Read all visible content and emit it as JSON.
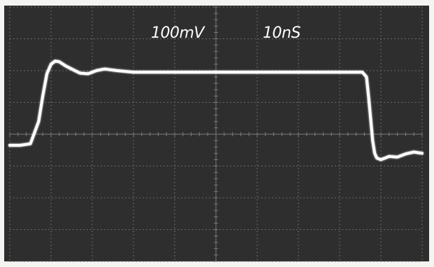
{
  "chart_data": {
    "type": "line",
    "title": "",
    "volts_per_div_label": "100mV",
    "time_per_div_label": "10nS",
    "grid": true,
    "divisions": {
      "x": 10,
      "y": 8
    },
    "xlim": [
      0,
      10
    ],
    "ylim": [
      -4,
      4
    ],
    "series": [
      {
        "x": [
          0.0,
          0.25,
          0.5,
          0.7,
          0.8,
          0.9,
          1.0,
          1.1,
          1.2,
          1.35,
          1.5,
          1.7,
          1.9,
          2.1,
          2.3,
          2.6,
          3.0,
          4.0,
          5.0,
          6.0,
          7.0,
          8.0,
          8.55,
          8.65,
          8.7,
          8.75,
          8.8,
          8.85,
          8.9,
          9.0,
          9.1,
          9.2,
          9.4,
          9.6,
          9.8,
          10.0
        ],
        "y": [
          -0.35,
          -0.35,
          -0.3,
          0.4,
          1.2,
          1.9,
          2.2,
          2.3,
          2.28,
          2.15,
          2.05,
          1.92,
          1.9,
          2.0,
          2.05,
          2.0,
          1.95,
          1.95,
          1.95,
          1.95,
          1.95,
          1.95,
          1.95,
          1.8,
          1.2,
          0.5,
          -0.2,
          -0.6,
          -0.75,
          -0.8,
          -0.75,
          -0.7,
          -0.72,
          -0.62,
          -0.56,
          -0.6
        ]
      }
    ]
  }
}
